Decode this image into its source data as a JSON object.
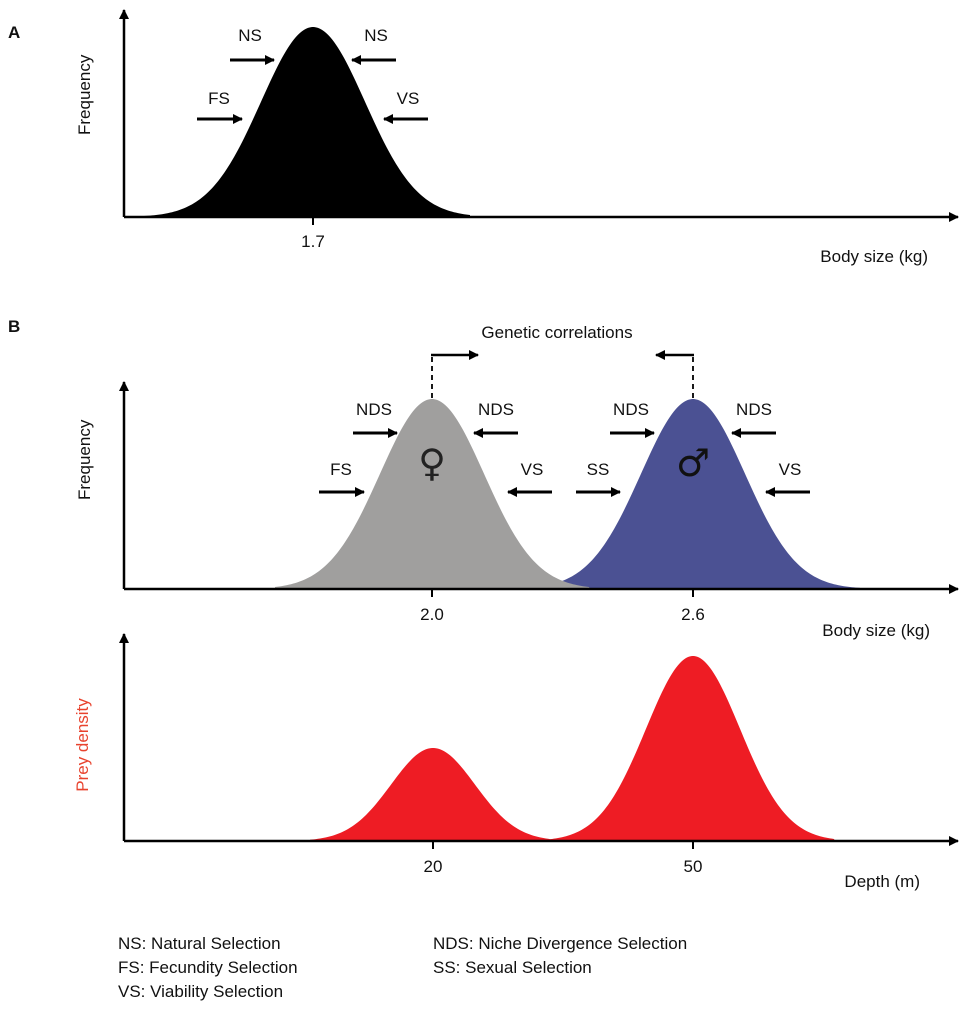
{
  "panel_a": {
    "letter": "A",
    "y_label": "Frequency",
    "x_label": "Body size (kg)",
    "peak_tick": "1.7",
    "arrow_labels": {
      "ns_left": "NS",
      "ns_right": "NS",
      "fs": "FS",
      "vs": "VS"
    },
    "curve_color": "#000000"
  },
  "panel_b": {
    "letter": "B",
    "title": "Genetic correlations",
    "y_label": "Frequency",
    "x_label": "Body size (kg)",
    "female": {
      "tick": "2.0",
      "symbol": "♀",
      "color": "#a09f9e",
      "arrow_labels": {
        "nds_left": "NDS",
        "nds_right": "NDS",
        "fs": "FS",
        "vs": "VS"
      }
    },
    "male": {
      "tick": "2.6",
      "symbol": "♂",
      "color": "#4b5193",
      "arrow_labels": {
        "nds_left": "NDS",
        "nds_right": "NDS",
        "ss": "SS",
        "vs": "VS"
      }
    }
  },
  "panel_c": {
    "y_label": "Prey density",
    "y_label_color": "#e8432e",
    "x_label": "Depth (m)",
    "ticks": [
      "20",
      "50"
    ],
    "curve_color": "#ee1c24"
  },
  "legend": {
    "ns": "NS: Natural Selection",
    "fs": "FS: Fecundity Selection",
    "vs": "VS: Viability Selection",
    "nds": "NDS: Niche Divergence Selection",
    "ss": "SS: Sexual Selection"
  }
}
